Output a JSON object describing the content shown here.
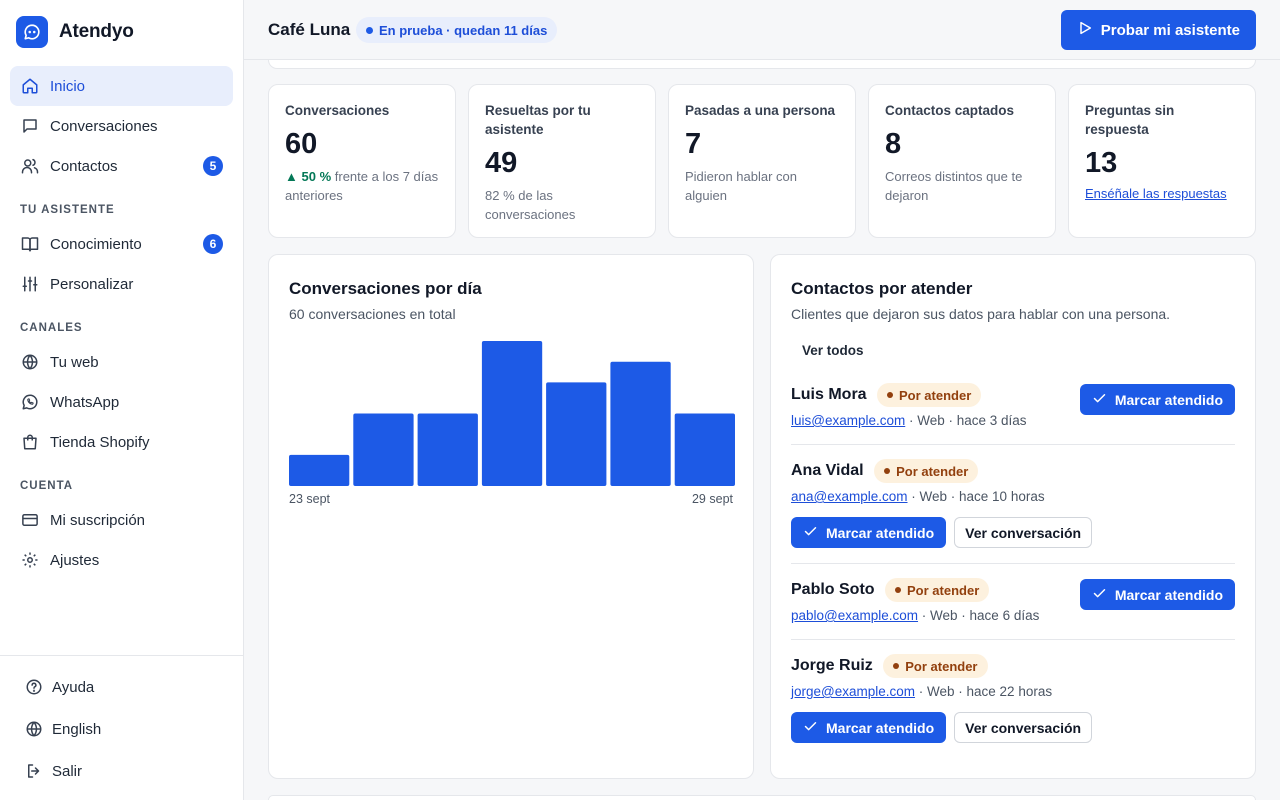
{
  "brand": {
    "name": "Atendyo"
  },
  "sidebar": {
    "items": [
      {
        "label": "Inicio",
        "icon": "home-icon",
        "active": true
      },
      {
        "label": "Conversaciones",
        "icon": "chat-icon"
      },
      {
        "label": "Contactos",
        "icon": "users-icon",
        "badge": "5"
      }
    ],
    "sections": [
      {
        "title": "TU ASISTENTE",
        "items": [
          {
            "label": "Conocimiento",
            "icon": "book-icon",
            "badge": "6"
          },
          {
            "label": "Personalizar",
            "icon": "sliders-icon"
          }
        ]
      },
      {
        "title": "CANALES",
        "items": [
          {
            "label": "Tu web",
            "icon": "globe-icon"
          },
          {
            "label": "WhatsApp",
            "icon": "whatsapp-icon"
          },
          {
            "label": "Tienda Shopify",
            "icon": "shopping-bag-icon"
          }
        ]
      },
      {
        "title": "CUENTA",
        "items": [
          {
            "label": "Mi suscripción",
            "icon": "credit-card-icon"
          },
          {
            "label": "Ajustes",
            "icon": "gear-icon"
          }
        ]
      }
    ],
    "footer": [
      {
        "label": "Ayuda",
        "icon": "help-icon"
      },
      {
        "label": "English",
        "icon": "globe-icon"
      },
      {
        "label": "Salir",
        "icon": "logout-icon"
      }
    ]
  },
  "header": {
    "business": "Café Luna",
    "trial": "En prueba · quedan 11 días",
    "try_button": "Probar mi asistente"
  },
  "stats": [
    {
      "label": "Conversaciones",
      "value": "60",
      "delta": "50 %",
      "sub": "frente a los 7 días anteriores"
    },
    {
      "label": "Resueltas por tu asistente",
      "value": "49",
      "sub": "82 % de las conversaciones"
    },
    {
      "label": "Pasadas a una persona",
      "value": "7",
      "sub": "Pidieron hablar con alguien"
    },
    {
      "label": "Contactos captados",
      "value": "8",
      "sub": "Correos distintos que te dejaron"
    },
    {
      "label": "Preguntas sin respuesta",
      "value": "13",
      "link": "Enséñale las respuestas"
    }
  ],
  "chart_panel": {
    "title": "Conversaciones por día",
    "subtitle": "60 conversaciones en total"
  },
  "chart_data": {
    "type": "bar",
    "categories": [
      "23 sept",
      "24 sept",
      "25 sept",
      "26 sept",
      "27 sept",
      "28 sept",
      "29 sept"
    ],
    "values": [
      3,
      7,
      7,
      14,
      10,
      12,
      7
    ],
    "x_tick_labels_shown": [
      "23 sept",
      "29 sept"
    ],
    "ylim": [
      0,
      14
    ],
    "grid": false,
    "color": "#1d5ae6"
  },
  "contacts_panel": {
    "title": "Contactos por atender",
    "subtitle": "Clientes que dejaron sus datos para hablar con una persona.",
    "view_all": "Ver todos",
    "status": "Por atender",
    "mark_label": "Marcar atendido",
    "view_label": "Ver conversación",
    "contacts": [
      {
        "name": "Luis Mora",
        "email": "luis@example.com",
        "meta": " · Web · hace 3 días"
      },
      {
        "name": "Ana Vidal",
        "email": "ana@example.com",
        "meta": " · Web · hace 10 horas"
      },
      {
        "name": "Pablo Soto",
        "email": "pablo@example.com",
        "meta": " · Web · hace 6 días"
      },
      {
        "name": "Jorge Ruiz",
        "email": "jorge@example.com",
        "meta": " · Web · hace 22 horas"
      }
    ]
  },
  "colors": {
    "accent": "#1d5ae6",
    "pending_bg": "#fdf1de",
    "pending_text": "#92400e",
    "positive": "#047857"
  }
}
